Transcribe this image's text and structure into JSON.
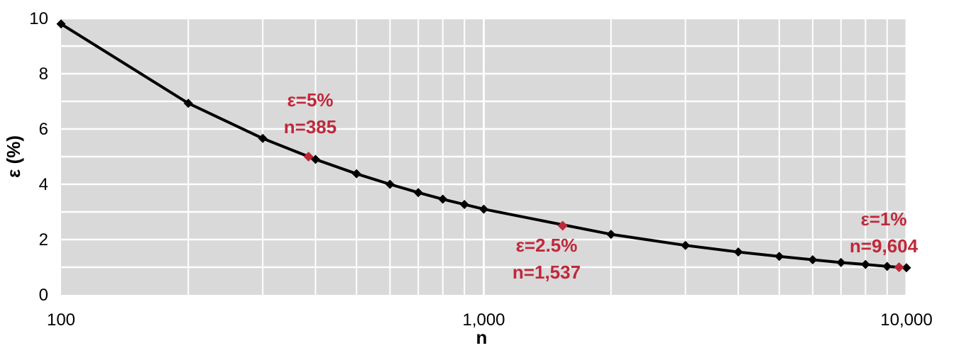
{
  "chart_data": {
    "type": "line",
    "xlabel": "n",
    "ylabel": "ε (%)",
    "xscale": "log",
    "xlim": [
      100,
      10000
    ],
    "ylim": [
      0,
      10
    ],
    "x_ticks": [
      "100",
      "1,000",
      "10,000"
    ],
    "y_ticks": [
      "0",
      "2",
      "4",
      "6",
      "8",
      "10"
    ],
    "grid": true,
    "colors": {
      "line": "#000000",
      "highlight": "#c0283a",
      "plot_bg": "#d9d9d9",
      "grid": "#ffffff"
    },
    "series": [
      {
        "x": [
          100,
          200,
          300,
          400,
          500,
          600,
          700,
          800,
          900,
          1000,
          2000,
          3000,
          4000,
          5000,
          6000,
          7000,
          8000,
          9000,
          10000
        ],
        "y": [
          9.8,
          6.93,
          5.66,
          4.9,
          4.38,
          4.0,
          3.7,
          3.46,
          3.27,
          3.1,
          2.19,
          1.79,
          1.55,
          1.39,
          1.27,
          1.17,
          1.1,
          1.03,
          0.98
        ]
      }
    ],
    "highlights": [
      {
        "x": 385,
        "y": 5,
        "label_lines": [
          "ε=5%",
          "n=385"
        ]
      },
      {
        "x": 1537,
        "y": 2.5,
        "label_lines": [
          "ε=2.5%",
          "n=1,537"
        ]
      },
      {
        "x": 9604,
        "y": 1,
        "label_lines": [
          "ε=1%",
          "n=9,604"
        ]
      }
    ]
  }
}
